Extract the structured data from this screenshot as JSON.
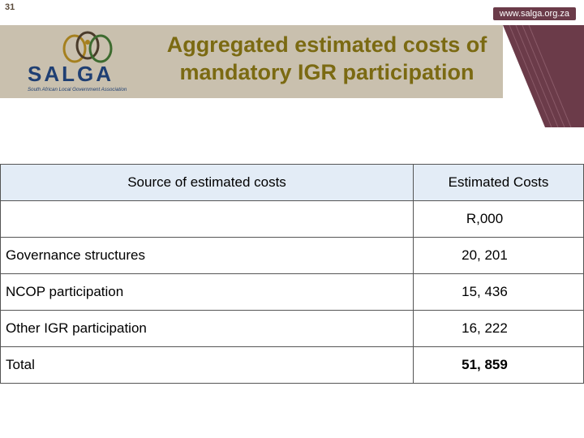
{
  "slide": {
    "number": "31",
    "url": "www.salga.org.za"
  },
  "logo": {
    "name": "SALGA",
    "tagline": "South African Local Government Association",
    "colors": {
      "gold": "#a5801f",
      "green": "#3d6b2f",
      "brown": "#4a3b2a",
      "blue": "#1f3f73"
    }
  },
  "title": {
    "line1": "Aggregated estimated costs of",
    "line2": "mandatory IGR participation"
  },
  "colors": {
    "title": "#7b6a12",
    "header_band": "#c9c0ae",
    "accent": "#6b3b49",
    "table_header": "#e3ecf6"
  },
  "table": {
    "header": {
      "source": "Source of estimated costs",
      "cost": "Estimated Costs"
    },
    "unit": "R,000",
    "rows": [
      {
        "source": "Governance structures",
        "cost": "20, 201"
      },
      {
        "source": "NCOP participation",
        "cost": "15, 436"
      },
      {
        "source": "Other IGR participation",
        "cost": "16, 222"
      }
    ],
    "total": {
      "label": "Total",
      "cost": "51, 859"
    }
  }
}
